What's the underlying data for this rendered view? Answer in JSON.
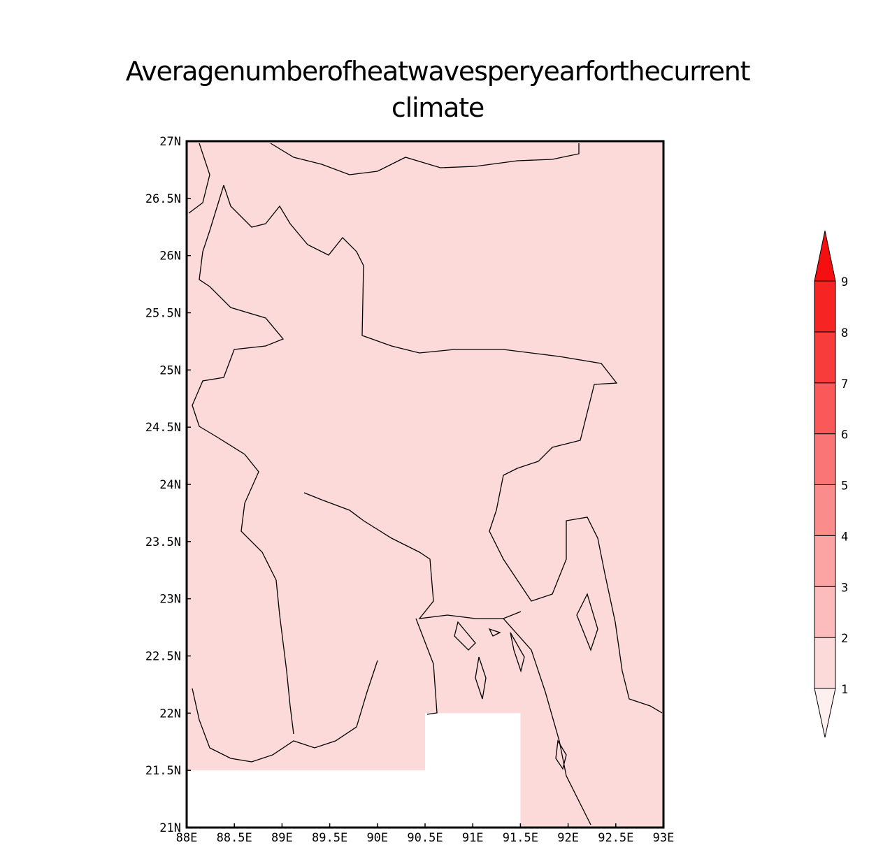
{
  "chart_data": {
    "type": "filled-map",
    "title": "Averagenumberofheatwavesperyearforthecurrent climate",
    "xlim": [
      88,
      93
    ],
    "ylim": [
      21,
      27
    ],
    "xticks": [
      {
        "value": 88,
        "label": "88E"
      },
      {
        "value": 88.5,
        "label": "88.5E"
      },
      {
        "value": 89,
        "label": "89E"
      },
      {
        "value": 89.5,
        "label": "89.5E"
      },
      {
        "value": 90,
        "label": "90E"
      },
      {
        "value": 90.5,
        "label": "90.5E"
      },
      {
        "value": 91,
        "label": "91E"
      },
      {
        "value": 91.5,
        "label": "91.5E"
      },
      {
        "value": 92,
        "label": "92E"
      },
      {
        "value": 92.5,
        "label": "92.5E"
      },
      {
        "value": 93,
        "label": "93E"
      }
    ],
    "yticks": [
      {
        "value": 21,
        "label": "21N"
      },
      {
        "value": 21.5,
        "label": "21.5N"
      },
      {
        "value": 22,
        "label": "22N"
      },
      {
        "value": 22.5,
        "label": "22.5N"
      },
      {
        "value": 23,
        "label": "23N"
      },
      {
        "value": 23.5,
        "label": "23.5N"
      },
      {
        "value": 24,
        "label": "24N"
      },
      {
        "value": 24.5,
        "label": "24.5N"
      },
      {
        "value": 25,
        "label": "25N"
      },
      {
        "value": 25.5,
        "label": "25.5N"
      },
      {
        "value": 26,
        "label": "26N"
      },
      {
        "value": 26.5,
        "label": "26.5N"
      },
      {
        "value": 27,
        "label": "27N"
      }
    ],
    "field_value": 1.5,
    "missing_boxes": [
      {
        "lon": [
          88,
          90.5
        ],
        "lat": [
          21,
          21.5
        ]
      },
      {
        "lon": [
          90.5,
          91.5
        ],
        "lat": [
          21,
          22
        ]
      }
    ],
    "levels": [
      1,
      2,
      3,
      4,
      5,
      6,
      7,
      8,
      9
    ],
    "colors": [
      "#fff0f0",
      "#fddada",
      "#fdbcbc",
      "#fca4a4",
      "#fb8c8c",
      "#fa7676",
      "#f95959",
      "#f83c3c",
      "#f72424",
      "#f41010"
    ]
  }
}
